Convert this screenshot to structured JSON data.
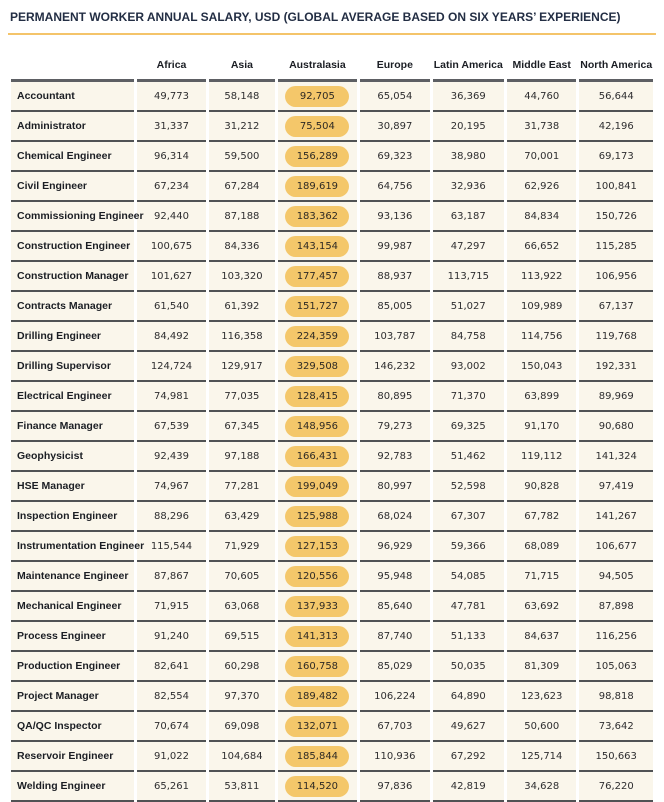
{
  "title": "PERMANENT WORKER ANNUAL SALARY, USD (GLOBAL AVERAGE BASED ON SIX YEARS’ EXPERIENCE)",
  "colors": {
    "accent_gold": "#F4C46A",
    "highlight_pill": "#F4C76A",
    "row_background": "#FAF6EB",
    "divider_gray": "#505254",
    "title_navy": "#232E44"
  },
  "table": {
    "columns": [
      "Africa",
      "Asia",
      "Australasia",
      "Europe",
      "Latin America",
      "Middle East",
      "North America"
    ],
    "highlight_column": "Australasia",
    "highlight_column_index": 2,
    "rows": [
      {
        "role": "Accountant",
        "values": [
          "49,773",
          "58,148",
          "92,705",
          "65,054",
          "36,369",
          "44,760",
          "56,644"
        ]
      },
      {
        "role": "Administrator",
        "values": [
          "31,337",
          "31,212",
          "75,504",
          "30,897",
          "20,195",
          "31,738",
          "42,196"
        ]
      },
      {
        "role": "Chemical Engineer",
        "values": [
          "96,314",
          "59,500",
          "156,289",
          "69,323",
          "38,980",
          "70,001",
          "69,173"
        ]
      },
      {
        "role": "Civil Engineer",
        "values": [
          "67,234",
          "67,284",
          "189,619",
          "64,756",
          "32,936",
          "62,926",
          "100,841"
        ]
      },
      {
        "role": "Commissioning Engineer",
        "values": [
          "92,440",
          "87,188",
          "183,362",
          "93,136",
          "63,187",
          "84,834",
          "150,726"
        ]
      },
      {
        "role": "Construction Engineer",
        "values": [
          "100,675",
          "84,336",
          "143,154",
          "99,987",
          "47,297",
          "66,652",
          "115,285"
        ]
      },
      {
        "role": "Construction Manager",
        "values": [
          "101,627",
          "103,320",
          "177,457",
          "88,937",
          "113,715",
          "113,922",
          "106,956"
        ]
      },
      {
        "role": "Contracts Manager",
        "values": [
          "61,540",
          "61,392",
          "151,727",
          "85,005",
          "51,027",
          "109,989",
          "67,137"
        ]
      },
      {
        "role": "Drilling Engineer",
        "values": [
          "84,492",
          "116,358",
          "224,359",
          "103,787",
          "84,758",
          "114,756",
          "119,768"
        ]
      },
      {
        "role": "Drilling Supervisor",
        "values": [
          "124,724",
          "129,917",
          "329,508",
          "146,232",
          "93,002",
          "150,043",
          "192,331"
        ]
      },
      {
        "role": "Electrical Engineer",
        "values": [
          "74,981",
          "77,035",
          "128,415",
          "80,895",
          "71,370",
          "63,899",
          "89,969"
        ]
      },
      {
        "role": "Finance Manager",
        "values": [
          "67,539",
          "67,345",
          "148,956",
          "79,273",
          "69,325",
          "91,170",
          "90,680"
        ]
      },
      {
        "role": "Geophysicist",
        "values": [
          "92,439",
          "97,188",
          "166,431",
          "92,783",
          "51,462",
          "119,112",
          "141,324"
        ]
      },
      {
        "role": "HSE Manager",
        "values": [
          "74,967",
          "77,281",
          "199,049",
          "80,997",
          "52,598",
          "90,828",
          "97,419"
        ]
      },
      {
        "role": "Inspection Engineer",
        "values": [
          "88,296",
          "63,429",
          "125,988",
          "68,024",
          "67,307",
          "67,782",
          "141,267"
        ]
      },
      {
        "role": "Instrumentation Engineer",
        "values": [
          "115,544",
          "71,929",
          "127,153",
          "96,929",
          "59,366",
          "68,089",
          "106,677"
        ]
      },
      {
        "role": "Maintenance Engineer",
        "values": [
          "87,867",
          "70,605",
          "120,556",
          "95,948",
          "54,085",
          "71,715",
          "94,505"
        ]
      },
      {
        "role": "Mechanical Engineer",
        "values": [
          "71,915",
          "63,068",
          "137,933",
          "85,640",
          "47,781",
          "63,692",
          "87,898"
        ]
      },
      {
        "role": "Process Engineer",
        "values": [
          "91,240",
          "69,515",
          "141,313",
          "87,740",
          "51,133",
          "84,637",
          "116,256"
        ]
      },
      {
        "role": "Production Engineer",
        "values": [
          "82,641",
          "60,298",
          "160,758",
          "85,029",
          "50,035",
          "81,309",
          "105,063"
        ]
      },
      {
        "role": "Project Manager",
        "values": [
          "82,554",
          "97,370",
          "189,482",
          "106,224",
          "64,890",
          "123,623",
          "98,818"
        ]
      },
      {
        "role": "QA/QC Inspector",
        "values": [
          "70,674",
          "69,098",
          "132,071",
          "67,703",
          "49,627",
          "50,600",
          "73,642"
        ]
      },
      {
        "role": "Reservoir Engineer",
        "values": [
          "91,022",
          "104,684",
          "185,844",
          "110,936",
          "67,292",
          "125,714",
          "150,663"
        ]
      },
      {
        "role": "Welding Engineer",
        "values": [
          "65,261",
          "53,811",
          "114,520",
          "97,836",
          "42,819",
          "34,628",
          "76,220"
        ]
      }
    ]
  }
}
